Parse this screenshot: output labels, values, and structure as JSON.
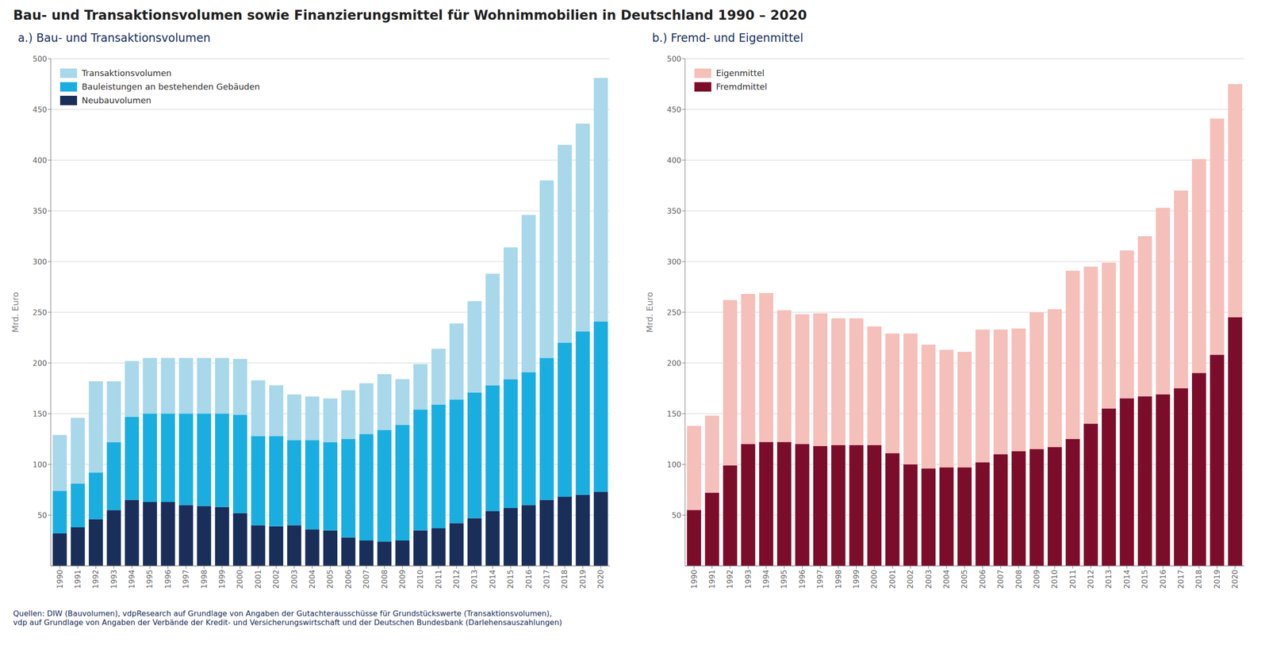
{
  "title": "Bau- und Transaktionsvolumen sowie Finanzierungsmittel für Wohnimmobilien in Deutschland 1990 – 2020",
  "annotations": [
    "Quellen: DIW (Bauvolumen), vdpResearch auf Grundlage von Angaben der Gutachterausschüsse für Grundstückswerte (Transaktionsvolumen),\nvdp auf Grundlage von Angaben der Verbände der Kredit- und Versicherungswirtschaft und der Deutschen Bundesbank (Darlehensauszahlungen)"
  ],
  "chart_data": [
    {
      "type": "bar",
      "title": "a.) Bau- und Transaktionsvolumen",
      "categories": [
        "1990",
        "1991",
        "1992",
        "1993",
        "1994",
        "1995",
        "1996",
        "1997",
        "1998",
        "1999",
        "2000",
        "2001",
        "2002",
        "2003",
        "2004",
        "2005",
        "2006",
        "2007",
        "2008",
        "2009",
        "2010",
        "2011",
        "2012",
        "2013",
        "2014",
        "2015",
        "2016",
        "2017",
        "2018",
        "2019",
        "2020"
      ],
      "series": [
        {
          "name": "Neubauvolumen",
          "color": "#1a2e5a",
          "values": [
            32,
            38,
            46,
            55,
            65,
            63,
            63,
            60,
            59,
            58,
            52,
            40,
            39,
            40,
            36,
            35,
            28,
            25,
            24,
            25,
            35,
            37,
            42,
            47,
            54,
            57,
            60,
            65,
            68,
            70,
            73
          ]
        },
        {
          "name": "Bauleistungen an bestehenden Gebäuden",
          "color": "#1aaee0",
          "values": [
            42,
            43,
            46,
            67,
            82,
            87,
            87,
            90,
            91,
            92,
            97,
            88,
            89,
            84,
            88,
            87,
            97,
            105,
            110,
            114,
            119,
            122,
            122,
            124,
            124,
            127,
            131,
            140,
            152,
            161,
            168
          ]
        },
        {
          "name": "Transaktionsvolumen",
          "color": "#a8d8ea",
          "values": [
            55,
            65,
            90,
            60,
            55,
            55,
            55,
            55,
            55,
            55,
            55,
            55,
            50,
            45,
            43,
            43,
            48,
            50,
            55,
            45,
            45,
            55,
            75,
            90,
            110,
            130,
            155,
            175,
            195,
            205,
            240
          ]
        }
      ],
      "ylabel": "Mrd. Euro",
      "ylim": [
        0,
        500
      ],
      "yticks": [
        50,
        100,
        150,
        200,
        250,
        300,
        350,
        400,
        450,
        500
      ],
      "grid": true,
      "legend": "upper left",
      "stacked": true
    },
    {
      "type": "bar",
      "title": "b.) Fremd- und Eigenmittel",
      "categories": [
        "1990",
        "1991",
        "1992",
        "1993",
        "1994",
        "1995",
        "1996",
        "1997",
        "1998",
        "1999",
        "2000",
        "2001",
        "2002",
        "2003",
        "2004",
        "2005",
        "2006",
        "2007",
        "2008",
        "2009",
        "2010",
        "2011",
        "2012",
        "2013",
        "2014",
        "2015",
        "2016",
        "2017",
        "2018",
        "2019",
        "2020"
      ],
      "series": [
        {
          "name": "Eigenmittel",
          "color": "#f5bfba",
          "values": [
            138,
            148,
            262,
            268,
            269,
            252,
            248,
            249,
            244,
            244,
            236,
            229,
            229,
            218,
            213,
            211,
            233,
            233,
            234,
            250,
            253,
            291,
            295,
            299,
            311,
            325,
            353,
            370,
            401,
            441,
            475
          ]
        },
        {
          "name": "Fremdmittel",
          "color": "#7b0d2a",
          "values": [
            55,
            72,
            99,
            120,
            122,
            122,
            120,
            118,
            119,
            119,
            119,
            111,
            100,
            96,
            97,
            97,
            102,
            110,
            113,
            115,
            117,
            125,
            140,
            155,
            165,
            167,
            169,
            175,
            190,
            208,
            245
          ]
        }
      ],
      "ylabel": "Mrd. Euro",
      "ylim": [
        0,
        500
      ],
      "yticks": [
        50,
        100,
        150,
        200,
        250,
        300,
        350,
        400,
        450,
        500
      ],
      "grid": true,
      "legend": "upper left",
      "stacked": false
    }
  ]
}
